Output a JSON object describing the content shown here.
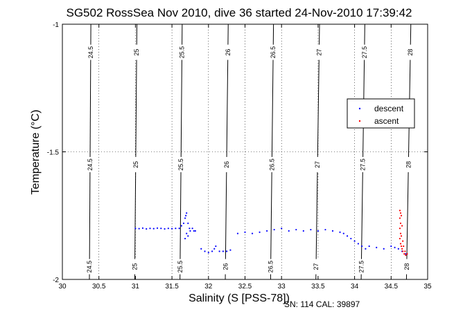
{
  "chart_data": {
    "type": "scatter",
    "title": "SG502 RossSea Nov 2010, dive 36 started 24-Nov-2010 17:39:42",
    "xlabel": "Salinity (S [PSS-78])",
    "ylabel": "Temperature (°C)",
    "xlim": [
      30,
      35
    ],
    "ylim": [
      -2,
      -1
    ],
    "xticks": [
      "30",
      "30.5",
      "31",
      "31.5",
      "32",
      "32.5",
      "33",
      "33.5",
      "34",
      "34.5",
      "35"
    ],
    "yticks": [
      "-2",
      "-1.5",
      "-1"
    ],
    "grid": true,
    "legend_position": "right",
    "footer": "SN: 114  CAL: 39897",
    "density_contours": [
      {
        "label": "24.5",
        "x_top": 30.39,
        "x_bottom": 30.37
      },
      {
        "label": "25",
        "x_top": 31.02,
        "x_bottom": 30.99
      },
      {
        "label": "25.5",
        "x_top": 31.64,
        "x_bottom": 31.61
      },
      {
        "label": "26",
        "x_top": 32.27,
        "x_bottom": 32.23
      },
      {
        "label": "26.5",
        "x_top": 32.89,
        "x_bottom": 32.85
      },
      {
        "label": "27",
        "x_top": 33.52,
        "x_bottom": 33.47
      },
      {
        "label": "27.5",
        "x_top": 34.14,
        "x_bottom": 34.09
      },
      {
        "label": "28",
        "x_top": 34.77,
        "x_bottom": 34.71
      }
    ],
    "series": [
      {
        "name": "descent",
        "color": "#0000ff",
        "points": [
          [
            31.0,
            -1.8
          ],
          [
            31.05,
            -1.801
          ],
          [
            31.1,
            -1.799
          ],
          [
            31.15,
            -1.802
          ],
          [
            31.2,
            -1.8
          ],
          [
            31.25,
            -1.801
          ],
          [
            31.3,
            -1.799
          ],
          [
            31.35,
            -1.8
          ],
          [
            31.4,
            -1.802
          ],
          [
            31.45,
            -1.8
          ],
          [
            31.5,
            -1.801
          ],
          [
            31.55,
            -1.8
          ],
          [
            31.6,
            -1.8
          ],
          [
            31.63,
            -1.79
          ],
          [
            31.66,
            -1.78
          ],
          [
            31.68,
            -1.76
          ],
          [
            31.69,
            -1.75
          ],
          [
            31.7,
            -1.74
          ],
          [
            31.72,
            -1.78
          ],
          [
            31.74,
            -1.8
          ],
          [
            31.7,
            -1.82
          ],
          [
            31.68,
            -1.84
          ],
          [
            31.72,
            -1.83
          ],
          [
            31.75,
            -1.81
          ],
          [
            31.78,
            -1.8
          ],
          [
            31.8,
            -1.81
          ],
          [
            31.82,
            -1.81
          ],
          [
            31.9,
            -1.88
          ],
          [
            31.95,
            -1.89
          ],
          [
            32.0,
            -1.895
          ],
          [
            32.05,
            -1.89
          ],
          [
            32.08,
            -1.88
          ],
          [
            32.1,
            -1.87
          ],
          [
            32.15,
            -1.89
          ],
          [
            32.2,
            -1.89
          ],
          [
            32.25,
            -1.89
          ],
          [
            32.3,
            -1.885
          ],
          [
            32.4,
            -1.82
          ],
          [
            32.5,
            -1.815
          ],
          [
            32.6,
            -1.82
          ],
          [
            32.7,
            -1.815
          ],
          [
            32.8,
            -1.81
          ],
          [
            32.9,
            -1.805
          ],
          [
            33.0,
            -1.8
          ],
          [
            33.1,
            -1.81
          ],
          [
            33.2,
            -1.805
          ],
          [
            33.3,
            -1.81
          ],
          [
            33.4,
            -1.805
          ],
          [
            33.5,
            -1.81
          ],
          [
            33.6,
            -1.805
          ],
          [
            33.7,
            -1.81
          ],
          [
            33.8,
            -1.815
          ],
          [
            33.85,
            -1.82
          ],
          [
            33.9,
            -1.83
          ],
          [
            33.95,
            -1.84
          ],
          [
            34.0,
            -1.85
          ],
          [
            34.05,
            -1.86
          ],
          [
            34.1,
            -1.87
          ],
          [
            34.15,
            -1.88
          ],
          [
            34.2,
            -1.87
          ],
          [
            34.3,
            -1.875
          ],
          [
            34.4,
            -1.88
          ],
          [
            34.5,
            -1.87
          ],
          [
            34.55,
            -1.875
          ],
          [
            34.6,
            -1.88
          ],
          [
            34.65,
            -1.89
          ],
          [
            34.7,
            -1.9
          ]
        ]
      },
      {
        "name": "ascent",
        "color": "#ff0000",
        "points": [
          [
            34.62,
            -1.73
          ],
          [
            34.63,
            -1.74
          ],
          [
            34.62,
            -1.76
          ],
          [
            34.63,
            -1.78
          ],
          [
            34.62,
            -1.8
          ],
          [
            34.63,
            -1.82
          ],
          [
            34.62,
            -1.84
          ],
          [
            34.63,
            -1.86
          ],
          [
            34.64,
            -1.87
          ],
          [
            34.65,
            -1.88
          ],
          [
            34.66,
            -1.89
          ],
          [
            34.68,
            -1.9
          ],
          [
            34.7,
            -1.905
          ],
          [
            34.72,
            -1.9
          ],
          [
            34.64,
            -1.75
          ],
          [
            34.65,
            -1.79
          ],
          [
            34.64,
            -1.83
          ],
          [
            34.66,
            -1.85
          ],
          [
            34.67,
            -1.87
          ],
          [
            34.69,
            -1.89
          ]
        ]
      }
    ]
  }
}
